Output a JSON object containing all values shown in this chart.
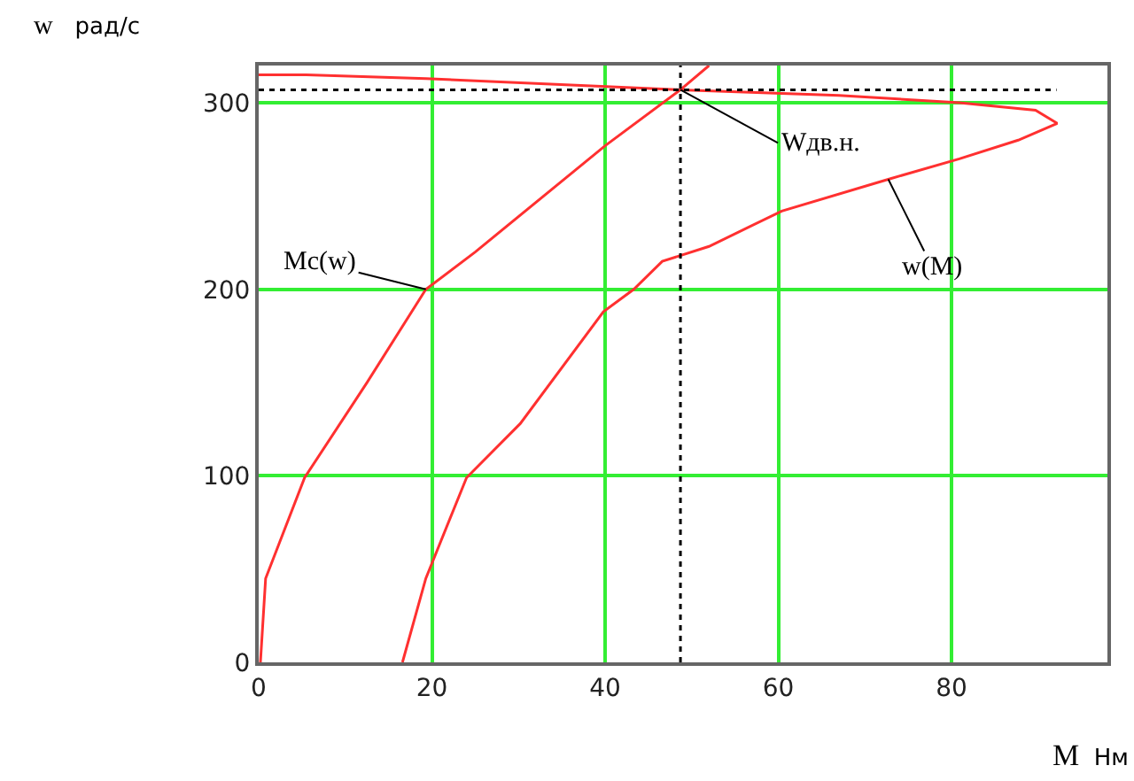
{
  "chart_data": {
    "type": "line",
    "xlabel": "M  Нм",
    "ylabel": "w  рад/с",
    "xlim": [
      0,
      98
    ],
    "ylim": [
      0,
      320
    ],
    "xticks": [
      0,
      20,
      40,
      60,
      80
    ],
    "yticks": [
      0,
      100,
      200,
      300
    ],
    "grid": true,
    "legend": false,
    "line_style": "solid",
    "series": [
      {
        "name": "Mc(w)",
        "color": "#ff3030",
        "x": [
          0.2,
          0.8,
          5.3,
          12.5,
          19.3,
          25,
          40,
          48.7,
          52
        ],
        "values": [
          0,
          45,
          99,
          150,
          200,
          220,
          277,
          307,
          320
        ]
      },
      {
        "name": "w(M)",
        "color": "#ff3030",
        "x": [
          16.6,
          19.3,
          24,
          30.2,
          39.8,
          43.3,
          46.6,
          52,
          60.4,
          72.7,
          80.9,
          87.7,
          92.2,
          89.7,
          80.9,
          67,
          48.7,
          19.3,
          5.5,
          0
        ],
        "values": [
          0,
          45,
          99,
          128,
          188,
          200,
          215,
          223,
          242,
          259,
          270,
          280,
          289,
          296,
          300,
          304,
          307,
          313,
          315,
          315
        ]
      }
    ],
    "ref_lines": [
      {
        "axis": "y",
        "value": 307,
        "color": "#000000",
        "line_style": "dotted"
      },
      {
        "axis": "x",
        "value": 48.7,
        "color": "#000000",
        "line_style": "dotted"
      }
    ],
    "annotations": [
      {
        "text": "Wдв.н.",
        "x": 48.7,
        "y": 307
      }
    ]
  }
}
